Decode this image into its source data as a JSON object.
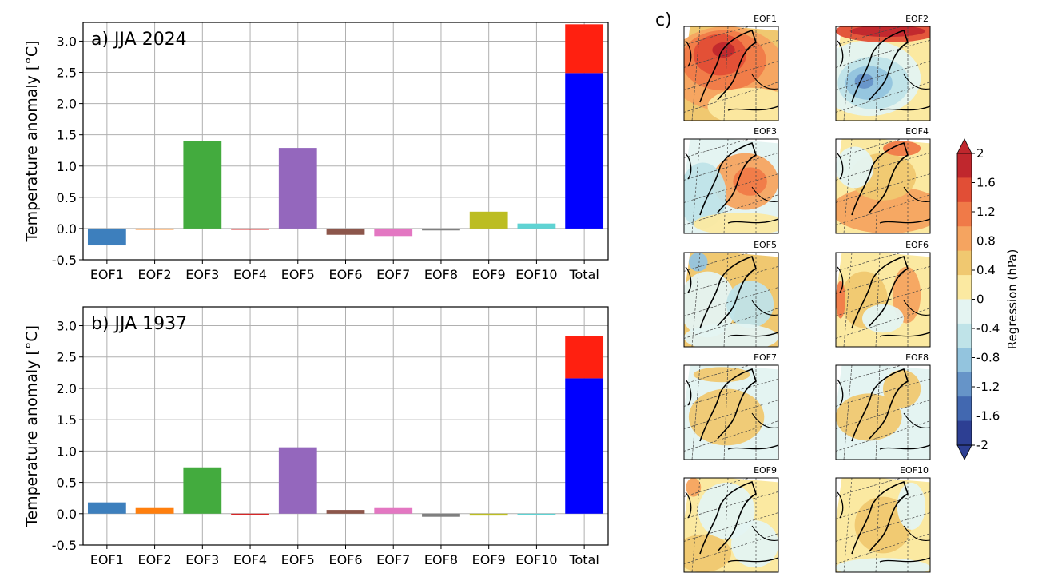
{
  "chart_data": [
    {
      "type": "bar",
      "title": "a) JJA 2024",
      "ylabel": "Temperature anomaly [°C]",
      "xlabel": "",
      "ylim": [
        -0.5,
        3.3
      ],
      "yticks": [
        3.0,
        2.5,
        2.0,
        1.5,
        1.0,
        0.5,
        0.0,
        -0.5
      ],
      "ytick_labels": [
        "3.0",
        "2.5",
        "2.0",
        "1.5",
        "1.0",
        "0.5",
        "0.0",
        "-0.5"
      ],
      "grid": true,
      "categories": [
        "EOF1",
        "EOF2",
        "EOF3",
        "EOF4",
        "EOF5",
        "EOF6",
        "EOF7",
        "EOF8",
        "EOF9",
        "EOF10",
        "Total"
      ],
      "values": [
        -0.27,
        0.0,
        1.4,
        -0.02,
        1.29,
        -0.1,
        -0.12,
        -0.03,
        0.27,
        0.08,
        3.27
      ],
      "colors": [
        "#3d7fbd",
        "#ff7f0e",
        "#43ab3e",
        "#d62728",
        "#9467bd",
        "#8c564b",
        "#e377c2",
        "#7f7f7f",
        "#bcbd22",
        "#5fd3d3",
        "#ff1a0a"
      ],
      "total_stack": {
        "blue_portion": 2.49,
        "red_portion": 0.78,
        "blue_color": "#0000ff",
        "red_color": "#ff2010"
      }
    },
    {
      "type": "bar",
      "title": "b) JJA 1937",
      "ylabel": "Temperature anomaly [°C]",
      "xlabel": "",
      "ylim": [
        -0.5,
        3.3
      ],
      "yticks": [
        3.0,
        2.5,
        2.0,
        1.5,
        1.0,
        0.5,
        0.0,
        -0.5
      ],
      "ytick_labels": [
        "3.0",
        "2.5",
        "2.0",
        "1.5",
        "1.0",
        "0.5",
        "0.0",
        "-0.5"
      ],
      "grid": true,
      "categories": [
        "EOF1",
        "EOF2",
        "EOF3",
        "EOF4",
        "EOF5",
        "EOF6",
        "EOF7",
        "EOF8",
        "EOF9",
        "EOF10",
        "Total"
      ],
      "values": [
        0.18,
        0.09,
        0.74,
        -0.01,
        1.06,
        0.06,
        0.09,
        -0.05,
        -0.03,
        -0.01,
        2.83
      ],
      "colors": [
        "#3d7fbd",
        "#ff7f0e",
        "#43ab3e",
        "#d62728",
        "#9467bd",
        "#8c564b",
        "#e377c2",
        "#7f7f7f",
        "#bcbd22",
        "#5fd3d3",
        "#ff1a0a"
      ],
      "total_stack": {
        "blue_portion": 2.16,
        "red_portion": 0.67,
        "blue_color": "#0000ff",
        "red_color": "#ff2010"
      }
    },
    {
      "type": "heatmap",
      "title": "c)",
      "panels": [
        "EOF1",
        "EOF2",
        "EOF3",
        "EOF4",
        "EOF5",
        "EOF6",
        "EOF7",
        "EOF8",
        "EOF9",
        "EOF10"
      ],
      "colorbar": {
        "label": "Regression (hPa)",
        "ticks": [
          "2",
          "1.6",
          "1.2",
          "0.8",
          "0.4",
          "0",
          "-0.4",
          "-0.8",
          "-1.2",
          "-1.6",
          "-2"
        ],
        "colors": [
          "#c0272d",
          "#e14e36",
          "#f07a48",
          "#f5a460",
          "#f0c870",
          "#fbe9a1",
          "#e4f4f2",
          "#bfe3e8",
          "#93c4de",
          "#6694c8",
          "#4268b0",
          "#2d3f93"
        ]
      }
    }
  ]
}
